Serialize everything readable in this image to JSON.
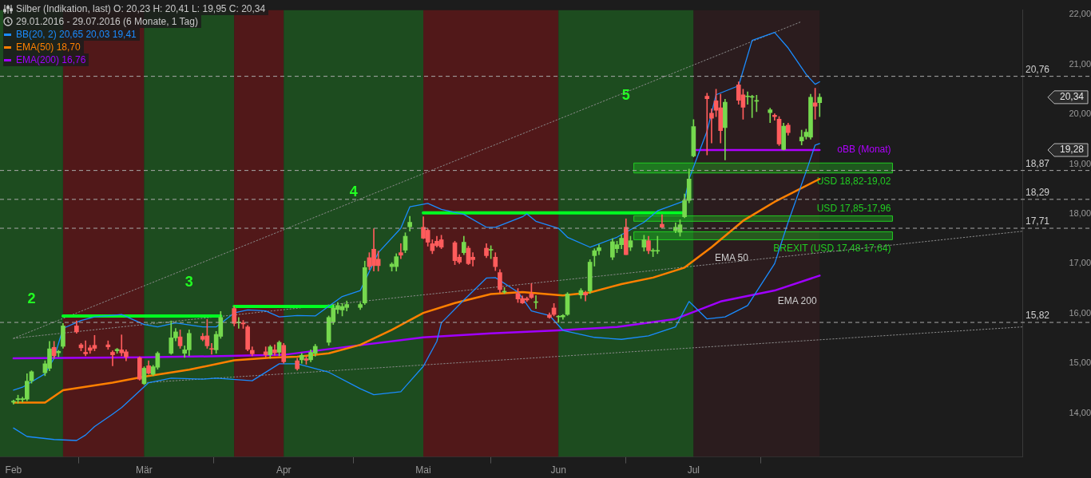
{
  "chart_data": {
    "type": "candlestick",
    "title": "Silber (Indikation, last)  O: 20,23  H: 20,41  L: 19,95  C: 20,34",
    "subtitle": "29.01.2016 - 29.07.2016 (6 Monate, 1 Tag)",
    "x": [
      "2016-02-01",
      "2016-02-02",
      "2016-02-03",
      "2016-02-04",
      "2016-02-05",
      "2016-02-08",
      "2016-02-09",
      "2016-02-10",
      "2016-02-11",
      "2016-02-12",
      "2016-02-15",
      "2016-02-16",
      "2016-02-17",
      "2016-02-18",
      "2016-02-19",
      "2016-02-22",
      "2016-02-23",
      "2016-02-24",
      "2016-02-25",
      "2016-02-26",
      "2016-02-29",
      "2016-03-01",
      "2016-03-02",
      "2016-03-03",
      "2016-03-04",
      "2016-03-07",
      "2016-03-08",
      "2016-03-09",
      "2016-03-10",
      "2016-03-11",
      "2016-03-14",
      "2016-03-15",
      "2016-03-16",
      "2016-03-17",
      "2016-03-18",
      "2016-03-21",
      "2016-03-22",
      "2016-03-23",
      "2016-03-24",
      "2016-03-25",
      "2016-03-28",
      "2016-03-29",
      "2016-03-30",
      "2016-03-31",
      "2016-04-01",
      "2016-04-04",
      "2016-04-05",
      "2016-04-06",
      "2016-04-07",
      "2016-04-08",
      "2016-04-11",
      "2016-04-12",
      "2016-04-13",
      "2016-04-14",
      "2016-04-15",
      "2016-04-18",
      "2016-04-19",
      "2016-04-20",
      "2016-04-21",
      "2016-04-22",
      "2016-04-25",
      "2016-04-26",
      "2016-04-27",
      "2016-04-28",
      "2016-04-29",
      "2016-05-02",
      "2016-05-03",
      "2016-05-04",
      "2016-05-05",
      "2016-05-06",
      "2016-05-09",
      "2016-05-10",
      "2016-05-11",
      "2016-05-12",
      "2016-05-13",
      "2016-05-16",
      "2016-05-17",
      "2016-05-18",
      "2016-05-19",
      "2016-05-20",
      "2016-05-23",
      "2016-05-24",
      "2016-05-25",
      "2016-05-26",
      "2016-05-27",
      "2016-05-30",
      "2016-05-31",
      "2016-06-01",
      "2016-06-02",
      "2016-06-03",
      "2016-06-06",
      "2016-06-07",
      "2016-06-08",
      "2016-06-09",
      "2016-06-10",
      "2016-06-13",
      "2016-06-14",
      "2016-06-15",
      "2016-06-16",
      "2016-06-17",
      "2016-06-20",
      "2016-06-21",
      "2016-06-22",
      "2016-06-23",
      "2016-06-24",
      "2016-06-27",
      "2016-06-28",
      "2016-06-29",
      "2016-06-30",
      "2016-07-01",
      "2016-07-04",
      "2016-07-05",
      "2016-07-06",
      "2016-07-07",
      "2016-07-08",
      "2016-07-11",
      "2016-07-12",
      "2016-07-13",
      "2016-07-14",
      "2016-07-15",
      "2016-07-18",
      "2016-07-19",
      "2016-07-20",
      "2016-07-21",
      "2016-07-22",
      "2016-07-25",
      "2016-07-26",
      "2016-07-27",
      "2016-07-28",
      "2016-07-29"
    ],
    "ohlc": [
      [
        14.22,
        14.26,
        14.18,
        14.24
      ],
      [
        14.27,
        14.36,
        14.2,
        14.29
      ],
      [
        14.27,
        14.32,
        14.22,
        14.29
      ],
      [
        14.28,
        14.79,
        14.25,
        14.64
      ],
      [
        14.65,
        14.85,
        14.6,
        14.83
      ],
      [
        14.81,
        15.05,
        14.75,
        14.99
      ],
      [
        14.9,
        15.44,
        14.85,
        15.29
      ],
      [
        15.32,
        15.44,
        15.1,
        15.15
      ],
      [
        15.21,
        15.26,
        15.13,
        15.24
      ],
      [
        15.34,
        15.8,
        15.3,
        15.75
      ],
      [
        15.75,
        15.85,
        15.6,
        15.63
      ],
      [
        15.37,
        15.4,
        15.25,
        15.31
      ],
      [
        15.22,
        15.45,
        15.15,
        15.19
      ],
      [
        15.31,
        15.36,
        15.2,
        15.26
      ],
      [
        15.36,
        15.56,
        15.25,
        15.3
      ],
      [
        15.37,
        15.45,
        15.28,
        15.33
      ],
      [
        15.22,
        15.25,
        14.95,
        15.17
      ],
      [
        15.25,
        15.3,
        15.2,
        15.28
      ],
      [
        15.27,
        15.57,
        15.15,
        15.21
      ],
      [
        15.23,
        15.27,
        15.05,
        15.13
      ],
      [
        15.11,
        15.13,
        14.66,
        14.68
      ],
      [
        14.59,
        14.93,
        14.57,
        14.9
      ],
      [
        14.95,
        15.05,
        14.78,
        14.8
      ],
      [
        14.78,
        14.96,
        14.75,
        14.93
      ],
      [
        14.92,
        15.23,
        14.88,
        15.2
      ],
      [
        15.2,
        15.85,
        15.18,
        15.51
      ],
      [
        15.51,
        15.7,
        15.45,
        15.63
      ],
      [
        15.53,
        15.67,
        15.3,
        15.35
      ],
      [
        15.2,
        15.35,
        15.12,
        15.27
      ],
      [
        15.27,
        15.67,
        15.15,
        15.6
      ],
      [
        15.54,
        15.6,
        15.45,
        15.48
      ],
      [
        15.55,
        15.88,
        15.3,
        15.35
      ],
      [
        15.29,
        15.4,
        15.18,
        15.28
      ],
      [
        15.27,
        15.64,
        15.2,
        15.58
      ],
      [
        15.54,
        16.04,
        15.5,
        15.92
      ],
      [
        16.1,
        16.14,
        15.75,
        15.8
      ],
      [
        15.81,
        15.92,
        15.7,
        15.81
      ],
      [
        15.81,
        15.86,
        15.7,
        15.79
      ],
      [
        15.73,
        15.76,
        15.25,
        15.28
      ],
      [
        15.26,
        15.33,
        15.15,
        15.19
      ],
      [
        15.23,
        15.33,
        15.12,
        15.17
      ],
      [
        15.17,
        15.36,
        15.1,
        15.33
      ],
      [
        15.27,
        15.37,
        15.16,
        15.21
      ],
      [
        15.22,
        15.45,
        15.15,
        15.42
      ],
      [
        15.36,
        15.4,
        15.0,
        15.03
      ],
      [
        15.05,
        15.1,
        14.86,
        14.89
      ],
      [
        15.07,
        15.2,
        15.0,
        15.16
      ],
      [
        15.09,
        15.13,
        14.98,
        15.06
      ],
      [
        15.07,
        15.27,
        15.03,
        15.22
      ],
      [
        15.2,
        15.38,
        15.14,
        15.34
      ],
      [
        15.42,
        15.95,
        15.36,
        15.92
      ],
      [
        15.83,
        16.18,
        15.78,
        16.11
      ],
      [
        16.08,
        16.22,
        16.0,
        16.16
      ],
      [
        16.07,
        16.2,
        15.95,
        16.14
      ],
      [
        16.12,
        16.25,
        16.05,
        16.18
      ],
      [
        16.12,
        16.22,
        16.08,
        16.18
      ],
      [
        16.21,
        17.05,
        16.18,
        16.92
      ],
      [
        17.12,
        17.22,
        16.88,
        16.94
      ],
      [
        17.29,
        17.7,
        16.85,
        16.96
      ],
      [
        17.09,
        17.25,
        16.85,
        16.96
      ],
      [
        16.94,
        17.02,
        16.85,
        16.99
      ],
      [
        16.94,
        17.2,
        16.85,
        17.14
      ],
      [
        17.22,
        17.4,
        17.1,
        17.17
      ],
      [
        17.27,
        17.62,
        17.22,
        17.55
      ],
      [
        17.74,
        17.95,
        17.65,
        17.83
      ],
      [
        17.73,
        17.94,
        17.5,
        17.51
      ],
      [
        17.67,
        17.7,
        17.35,
        17.43
      ],
      [
        17.4,
        17.48,
        17.2,
        17.26
      ],
      [
        17.45,
        17.55,
        17.33,
        17.36
      ],
      [
        17.48,
        17.57,
        17.3,
        17.33
      ],
      [
        17.42,
        17.45,
        16.98,
        17.06
      ],
      [
        17.13,
        17.18,
        17.0,
        17.03
      ],
      [
        17.22,
        17.55,
        17.18,
        17.43
      ],
      [
        17.31,
        17.35,
        16.98,
        17.0
      ],
      [
        17.13,
        17.22,
        16.95,
        17.08
      ],
      [
        17.31,
        17.4,
        17.12,
        17.16
      ],
      [
        17.27,
        17.36,
        17.1,
        17.27
      ],
      [
        17.13,
        17.22,
        16.86,
        16.94
      ],
      [
        16.82,
        16.88,
        16.42,
        16.48
      ],
      [
        16.43,
        16.52,
        16.4,
        16.43
      ],
      [
        16.4,
        16.5,
        16.22,
        16.29
      ],
      [
        16.3,
        16.35,
        16.2,
        16.21
      ],
      [
        16.3,
        16.33,
        16.24,
        16.27
      ],
      [
        16.39,
        16.6,
        16.3,
        16.32
      ],
      [
        16.22,
        16.36,
        16.1,
        16.22
      ],
      [
        15.97,
        16.01,
        15.9,
        15.92
      ],
      [
        16.11,
        16.2,
        15.95,
        15.98
      ],
      [
        15.93,
        15.96,
        15.82,
        15.93
      ],
      [
        15.93,
        15.98,
        15.88,
        15.96
      ],
      [
        15.98,
        16.42,
        15.96,
        16.39
      ],
      [
        16.37,
        16.5,
        16.3,
        16.46
      ],
      [
        16.41,
        16.45,
        16.25,
        16.37
      ],
      [
        16.45,
        17.08,
        16.4,
        17.03
      ],
      [
        17.16,
        17.3,
        16.95,
        17.26
      ],
      [
        17.26,
        17.38,
        17.18,
        17.32
      ],
      [
        17.13,
        17.5,
        17.08,
        17.44
      ],
      [
        17.3,
        17.45,
        17.22,
        17.38
      ],
      [
        17.38,
        17.58,
        17.3,
        17.51
      ],
      [
        17.73,
        17.9,
        17.18,
        17.18
      ],
      [
        17.33,
        17.55,
        17.26,
        17.46
      ],
      [
        17.33,
        17.57,
        17.25,
        17.48
      ],
      [
        17.46,
        17.55,
        17.2,
        17.26
      ],
      [
        17.25,
        17.3,
        17.14,
        17.25
      ],
      [
        17.25,
        17.55,
        17.2,
        17.25
      ],
      [
        17.79,
        17.98,
        17.72,
        17.73
      ],
      [
        17.66,
        17.82,
        17.62,
        17.73
      ],
      [
        17.63,
        17.88,
        17.55,
        17.78
      ],
      [
        17.94,
        18.4,
        17.92,
        18.27
      ],
      [
        18.27,
        18.9,
        18.22,
        18.7
      ],
      [
        19.16,
        19.89,
        19.14,
        19.75
      ],
      [
        20.36,
        20.42,
        19.18,
        20.31
      ],
      [
        20.02,
        20.11,
        19.42,
        19.92
      ],
      [
        20.27,
        20.5,
        19.95,
        20.08
      ],
      [
        20.13,
        20.4,
        19.42,
        19.67
      ],
      [
        19.73,
        20.3,
        19.08,
        20.24
      ],
      [
        20.59,
        20.65,
        20.2,
        20.28
      ],
      [
        20.39,
        20.5,
        19.9,
        20.14
      ],
      [
        20.35,
        20.45,
        20.2,
        20.36
      ],
      [
        20.34,
        20.38,
        19.93,
        20.34
      ],
      [
        20.26,
        20.38,
        20.05,
        20.26
      ],
      [
        20.03,
        20.12,
        19.83,
        20.09
      ],
      [
        19.98,
        20.01,
        19.88,
        19.95
      ],
      [
        19.9,
        19.95,
        19.37,
        19.4
      ],
      [
        19.29,
        19.82,
        19.28,
        19.76
      ],
      [
        19.78,
        19.82,
        19.58,
        19.63
      ],
      [
        19.46,
        19.68,
        19.38,
        19.54
      ],
      [
        19.55,
        19.7,
        19.5,
        19.64
      ],
      [
        19.54,
        20.4,
        19.5,
        20.34
      ],
      [
        20.23,
        20.52,
        19.9,
        20.16
      ],
      [
        20.23,
        20.41,
        19.95,
        20.34
      ]
    ],
    "series": [
      {
        "type": "line",
        "name": "BB(20, 2)  20,65  20,03  19,41",
        "color": "#1a8cff",
        "x": [
          "2016-02-01",
          "2016-02-03",
          "2016-02-08",
          "2016-02-10",
          "2016-02-12",
          "2016-02-16",
          "2016-02-19",
          "2016-02-25",
          "2016-03-01",
          "2016-03-04",
          "2016-03-08",
          "2016-03-14",
          "2016-03-17",
          "2016-03-21",
          "2016-03-24",
          "2016-03-28",
          "2016-03-31",
          "2016-04-04",
          "2016-04-08",
          "2016-04-14",
          "2016-04-18",
          "2016-04-22",
          "2016-04-27",
          "2016-04-29",
          "2016-05-03",
          "2016-05-06",
          "2016-05-11",
          "2016-05-16",
          "2016-05-18",
          "2016-05-24",
          "2016-05-25",
          "2016-05-27",
          "2016-06-01",
          "2016-06-03",
          "2016-06-08",
          "2016-06-14",
          "2016-06-20",
          "2016-06-23",
          "2016-06-29",
          "2016-06-30",
          "2016-07-04",
          "2016-07-06",
          "2016-07-11",
          "2016-07-14",
          "2016-07-19",
          "2016-07-22",
          "2016-07-26",
          "2016-07-28",
          "2016-07-29"
        ],
        "values": [
          14.46,
          14.52,
          14.79,
          15.1,
          15.7,
          15.86,
          15.93,
          15.98,
          15.78,
          15.73,
          15.81,
          15.73,
          15.73,
          16.01,
          16.07,
          16.05,
          15.93,
          15.96,
          15.95,
          16.34,
          16.46,
          17.22,
          17.71,
          18.14,
          18.21,
          18.09,
          17.99,
          17.73,
          17.73,
          17.94,
          18.0,
          17.85,
          17.71,
          17.53,
          17.33,
          17.53,
          17.83,
          18.06,
          18.26,
          18.7,
          19.66,
          20.39,
          20.57,
          21.48,
          21.64,
          21.33,
          20.8,
          20.6,
          20.65
        ]
      },
      {
        "type": "line",
        "color": "#1a8cff",
        "x": [
          "2016-02-01",
          "2016-02-04",
          "2016-02-10",
          "2016-02-15",
          "2016-02-17",
          "2016-02-19",
          "2016-02-23",
          "2016-02-25",
          "2016-03-02",
          "2016-03-07",
          "2016-03-14",
          "2016-03-17",
          "2016-03-25",
          "2016-03-31",
          "2016-04-04",
          "2016-04-11",
          "2016-04-18",
          "2016-04-21",
          "2016-04-27",
          "2016-05-02",
          "2016-05-05",
          "2016-05-06",
          "2016-05-11",
          "2016-05-16",
          "2016-05-18",
          "2016-05-23",
          "2016-05-26",
          "2016-05-30",
          "2016-06-02",
          "2016-06-09",
          "2016-06-15",
          "2016-06-21",
          "2016-06-27",
          "2016-06-30",
          "2016-07-04",
          "2016-07-08",
          "2016-07-13",
          "2016-07-19",
          "2016-07-22",
          "2016-07-26",
          "2016-07-28",
          "2016-07-29"
        ],
        "values": [
          13.7,
          13.53,
          13.47,
          13.45,
          13.56,
          13.73,
          13.98,
          14.11,
          14.61,
          14.7,
          14.68,
          14.7,
          14.65,
          14.99,
          14.99,
          14.82,
          14.49,
          14.37,
          14.43,
          14.94,
          15.44,
          15.81,
          16.27,
          16.71,
          16.72,
          16.43,
          16.05,
          15.96,
          15.66,
          15.52,
          15.48,
          15.55,
          15.73,
          16.24,
          15.89,
          15.93,
          16.16,
          17.0,
          17.83,
          18.85,
          19.38,
          19.41
        ]
      },
      {
        "type": "line",
        "name": "EMA(50)  18,70",
        "color": "#ff8000",
        "x": [
          "2016-02-01",
          "2016-02-08",
          "2016-02-12",
          "2016-02-23",
          "2016-03-01",
          "2016-03-11",
          "2016-03-21",
          "2016-03-29",
          "2016-04-04",
          "2016-04-11",
          "2016-04-18",
          "2016-04-25",
          "2016-05-02",
          "2016-05-09",
          "2016-05-17",
          "2016-05-24",
          "2016-06-02",
          "2016-06-08",
          "2016-06-15",
          "2016-06-22",
          "2016-06-29",
          "2016-07-05",
          "2016-07-12",
          "2016-07-19",
          "2016-07-29"
        ],
        "values": [
          14.21,
          14.21,
          14.46,
          14.61,
          14.73,
          14.87,
          15.06,
          15.11,
          15.13,
          15.2,
          15.37,
          15.67,
          16.01,
          16.21,
          16.39,
          16.43,
          16.36,
          16.42,
          16.59,
          16.72,
          16.92,
          17.33,
          17.86,
          18.24,
          18.7
        ]
      },
      {
        "type": "line",
        "name": "EMA(200)  16,76",
        "color": "#a000ff",
        "x": [
          "2016-02-01",
          "2016-03-01",
          "2016-03-16",
          "2016-04-01",
          "2016-04-15",
          "2016-05-02",
          "2016-05-17",
          "2016-06-01",
          "2016-06-14",
          "2016-06-27",
          "2016-07-07",
          "2016-07-19",
          "2016-07-29"
        ],
        "values": [
          15.1,
          15.12,
          15.14,
          15.17,
          15.33,
          15.52,
          15.6,
          15.66,
          15.73,
          15.89,
          16.24,
          16.46,
          16.76
        ]
      },
      {
        "type": "line",
        "color": "#00ff22",
        "x": [
          "2016-02-12",
          "2016-03-18"
        ],
        "values": [
          15.95,
          15.95
        ]
      },
      {
        "type": "line",
        "color": "#00ff22",
        "x": [
          "2016-03-21",
          "2016-04-12"
        ],
        "values": [
          16.14,
          16.14
        ]
      },
      {
        "type": "line",
        "color": "#00ff22",
        "x": [
          "2016-05-02",
          "2016-06-29"
        ],
        "values": [
          18.02,
          18.02
        ]
      },
      {
        "type": "line",
        "name": "oBB (Monat)",
        "color": "#b000ff",
        "x": [
          "2016-07-01",
          "2016-07-29"
        ],
        "values": [
          19.28,
          19.28
        ]
      },
      {
        "type": "line",
        "color": "#8a8a8a",
        "line_style": "dotted",
        "x": [
          "2016-02-01",
          "2016-09-12"
        ],
        "values": [
          15.5,
          17.65
        ]
      },
      {
        "type": "line",
        "color": "#8a8a8a",
        "line_style": "dotted",
        "x": [
          "2016-03-01",
          "2016-09-12"
        ],
        "values": [
          14.61,
          15.73
        ]
      },
      {
        "type": "line",
        "color": "#8a8a8a",
        "line_style": "dotted",
        "x": [
          "2016-02-01",
          "2016-07-25"
        ],
        "values": [
          15.5,
          21.86
        ]
      }
    ],
    "xlim": [
      "2016-01-29",
      "2016-09-12"
    ],
    "xticks": [
      {
        "value": "2016-02-01",
        "label": "Feb"
      },
      {
        "value": "2016-03-01",
        "label": "Mär"
      },
      {
        "value": "2016-04-01",
        "label": "Apr"
      },
      {
        "value": "2016-05-02",
        "label": "Mai"
      },
      {
        "value": "2016-06-01",
        "label": "Jun"
      },
      {
        "value": "2016-07-01",
        "label": "Jul"
      }
    ],
    "ylim": [
      13.12,
      22.09
    ],
    "yticks": [
      {
        "value": 14,
        "label": "14,00"
      },
      {
        "value": 15,
        "label": "15,00"
      },
      {
        "value": 16,
        "label": "16,00"
      },
      {
        "value": 17,
        "label": "17,00"
      },
      {
        "value": 18,
        "label": "18,00"
      },
      {
        "value": 19,
        "label": "19,00"
      },
      {
        "value": 20,
        "label": "20,00"
      },
      {
        "value": 21,
        "label": "21,00"
      },
      {
        "value": 22,
        "label": "22,00"
      }
    ],
    "bands": [
      {
        "axis": "x",
        "from": "2016-01-29",
        "to": "2016-02-12",
        "label": "2",
        "color": "#1d5520"
      },
      {
        "axis": "x",
        "from": "2016-02-12",
        "to": "2016-03-01",
        "color": "#5a1719"
      },
      {
        "axis": "x",
        "from": "2016-03-01",
        "to": "2016-03-21",
        "label": "3",
        "color": "#1d5520"
      },
      {
        "axis": "x",
        "from": "2016-03-21",
        "to": "2016-04-01",
        "color": "#5a1719"
      },
      {
        "axis": "x",
        "from": "2016-04-01",
        "to": "2016-05-02",
        "label": "4",
        "color": "#1d5520"
      },
      {
        "axis": "x",
        "from": "2016-05-02",
        "to": "2016-06-01",
        "color": "#5a1719"
      },
      {
        "axis": "x",
        "from": "2016-06-01",
        "to": "2016-07-01",
        "label": "5",
        "color": "#1d5520"
      },
      {
        "axis": "x",
        "from": "2016-07-01",
        "to": "2016-07-29",
        "color": "#2e1c1e"
      },
      {
        "axis": "y",
        "from": 18.82,
        "to": 19.02,
        "label": "USD 18,82-19,02",
        "color": "#22cc22"
      },
      {
        "axis": "y",
        "from": 17.85,
        "to": 17.96,
        "label": "USD 17,85-17,96",
        "color": "#22cc22"
      },
      {
        "axis": "y",
        "from": 17.48,
        "to": 17.64,
        "label": "BREXIT (USD 17,48-17,64)",
        "color": "#22cc22"
      }
    ],
    "ref_lines": [
      {
        "axis": "y",
        "value": 20.76,
        "label": "20,76",
        "color": "#aaaaaa",
        "line_style": "dashed"
      },
      {
        "axis": "y",
        "value": 18.87,
        "label": "18,87",
        "color": "#aaaaaa",
        "line_style": "dashed"
      },
      {
        "axis": "y",
        "value": 18.29,
        "label": "18,29",
        "color": "#aaaaaa",
        "line_style": "dashed"
      },
      {
        "axis": "y",
        "value": 17.71,
        "label": "17,71",
        "color": "#aaaaaa",
        "line_style": "dashed"
      },
      {
        "axis": "y",
        "value": 15.82,
        "label": "15,82",
        "color": "#aaaaaa",
        "line_style": "dashed"
      }
    ],
    "annotations": [
      {
        "text": "EMA 50",
        "x": "2016-07-05",
        "y": 17.33
      },
      {
        "text": "EMA 200",
        "x": "2016-07-19",
        "y": 16.46
      },
      "20,34",
      "19,28"
    ],
    "legend": "top left",
    "grid": false
  }
}
